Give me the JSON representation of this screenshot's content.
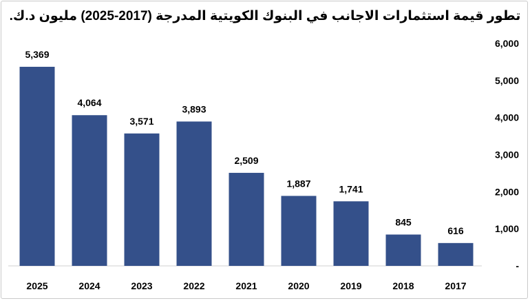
{
  "chart_data": {
    "type": "bar",
    "title": "تطور قيمة استثمارات الاجانب في البنوك الكويتية المدرجة (2017-2025) مليون د.ك.",
    "categories": [
      "2025",
      "2024",
      "2023",
      "2022",
      "2021",
      "2020",
      "2019",
      "2018",
      "2017"
    ],
    "values": [
      5369,
      4064,
      3571,
      3893,
      2509,
      1887,
      1741,
      845,
      616
    ],
    "value_labels": [
      "5,369",
      "4,064",
      "3,571",
      "3,893",
      "2,509",
      "1,887",
      "1,741",
      "845",
      "616"
    ],
    "y_ticks": [
      0,
      1000,
      2000,
      3000,
      4000,
      5000,
      6000
    ],
    "y_tick_labels": [
      "-",
      "1,000",
      "2,000",
      "3,000",
      "4,000",
      "5,000",
      "6,000"
    ],
    "ylim": [
      0,
      6000
    ],
    "y_axis_side": "right",
    "grid": false,
    "legend": "none",
    "bar_color": "#34508a"
  }
}
